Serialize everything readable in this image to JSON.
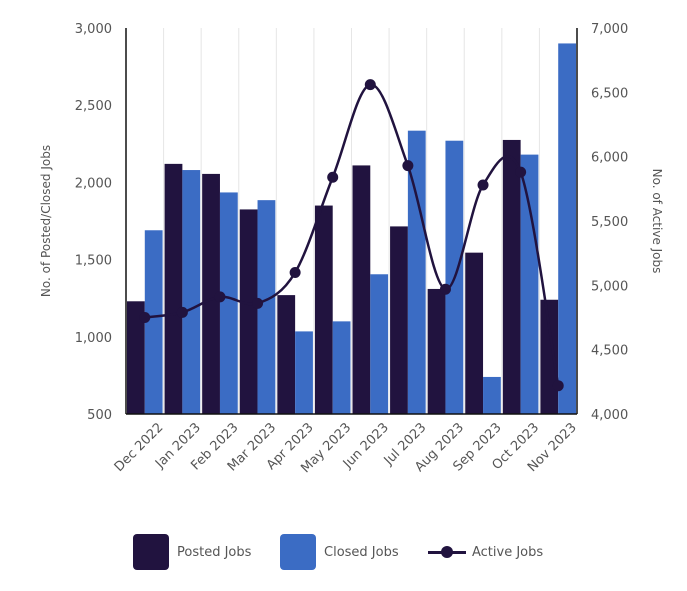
{
  "chart_data": {
    "type": "bar",
    "categories": [
      "Dec 2022",
      "Jan 2023",
      "Feb 2023",
      "Mar 2023",
      "Apr 2023",
      "May 2023",
      "Jun 2023",
      "Jul 2023",
      "Aug 2023",
      "Sep 2023",
      "Oct 2023",
      "Nov 2023"
    ],
    "series": [
      {
        "name": "Posted Jobs",
        "kind": "bar",
        "axis": "left",
        "color": "#21133f",
        "values": [
          1230,
          2120,
          2055,
          1825,
          1270,
          1850,
          2110,
          1715,
          1310,
          1545,
          2275,
          1240
        ]
      },
      {
        "name": "Closed Jobs",
        "kind": "bar",
        "axis": "left",
        "color": "#3b6cc4",
        "values": [
          1690,
          2080,
          1935,
          1885,
          1035,
          1100,
          1405,
          2335,
          2270,
          740,
          2180,
          2900
        ]
      },
      {
        "name": "Active Jobs",
        "kind": "line",
        "axis": "right",
        "color": "#21133f",
        "values": [
          4750,
          4790,
          4910,
          4860,
          5100,
          5840,
          6560,
          5930,
          4970,
          5780,
          5880,
          4220
        ]
      }
    ],
    "y_left": {
      "label": "No. of Posted/Closed Jobs",
      "min": 500,
      "max": 3000,
      "ticks": [
        "500",
        "1,000",
        "1,500",
        "2,000",
        "2,500",
        "3,000"
      ]
    },
    "y_right": {
      "label": "No. of Active Jobs",
      "min": 4000,
      "max": 7000,
      "ticks": [
        "4,000",
        "4,500",
        "5,000",
        "5,500",
        "6,000",
        "6,500",
        "7,000"
      ]
    },
    "grid": "vertical",
    "legend_position": "bottom"
  }
}
